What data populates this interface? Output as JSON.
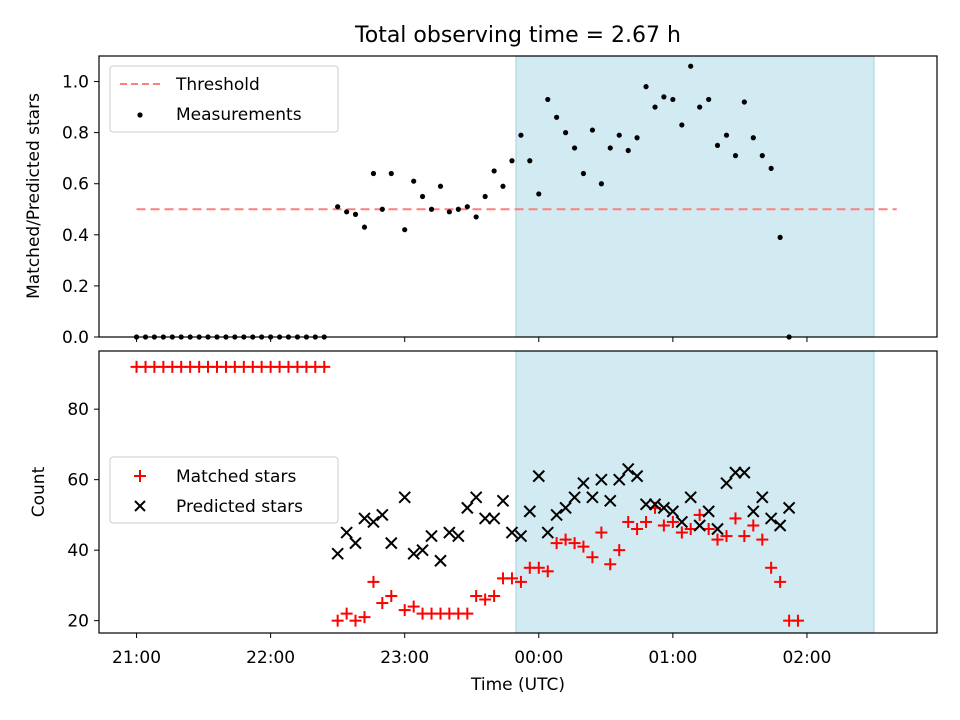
{
  "chart_data": [
    {
      "type": "scatter",
      "title": "Total observing time = 2.67 h",
      "ylabel": "Matched/Predicted stars",
      "ylim": [
        0,
        1.1
      ],
      "xlim": [
        -0.28,
        5.97
      ],
      "yticks": [
        0.0,
        0.2,
        0.4,
        0.6,
        0.8,
        1.0
      ],
      "ytick_labels": [
        "0.0",
        "0.2",
        "0.4",
        "0.6",
        "0.8",
        "1.0"
      ],
      "legend_position": "top-left",
      "shaded_region": {
        "x": [
          2.83,
          5.5
        ],
        "color": "#add8e6"
      },
      "threshold": {
        "name": "Threshold",
        "y": 0.5,
        "x": [
          0,
          5.67
        ],
        "color": "#ff7f7f",
        "style": "dashed"
      },
      "series": [
        {
          "name": "Measurements",
          "marker": "dot",
          "color": "#000000",
          "points": [
            [
              0.0,
              0
            ],
            [
              0.067,
              0
            ],
            [
              0.133,
              0
            ],
            [
              0.2,
              0
            ],
            [
              0.267,
              0
            ],
            [
              0.333,
              0
            ],
            [
              0.4,
              0
            ],
            [
              0.467,
              0
            ],
            [
              0.533,
              0
            ],
            [
              0.6,
              0
            ],
            [
              0.667,
              0
            ],
            [
              0.733,
              0
            ],
            [
              0.8,
              0
            ],
            [
              0.867,
              0
            ],
            [
              0.933,
              0
            ],
            [
              1.0,
              0
            ],
            [
              1.067,
              0
            ],
            [
              1.133,
              0
            ],
            [
              1.2,
              0
            ],
            [
              1.267,
              0
            ],
            [
              1.333,
              0
            ],
            [
              1.4,
              0
            ],
            [
              1.5,
              0.51
            ],
            [
              1.567,
              0.49
            ],
            [
              1.633,
              0.48
            ],
            [
              1.7,
              0.43
            ],
            [
              1.767,
              0.64
            ],
            [
              1.833,
              0.5
            ],
            [
              1.9,
              0.64
            ],
            [
              2.0,
              0.42
            ],
            [
              2.067,
              0.61
            ],
            [
              2.133,
              0.55
            ],
            [
              2.2,
              0.5
            ],
            [
              2.267,
              0.59
            ],
            [
              2.333,
              0.49
            ],
            [
              2.4,
              0.5
            ],
            [
              2.467,
              0.51
            ],
            [
              2.533,
              0.47
            ],
            [
              2.6,
              0.55
            ],
            [
              2.667,
              0.65
            ],
            [
              2.733,
              0.59
            ],
            [
              2.8,
              0.69
            ],
            [
              2.867,
              0.79
            ],
            [
              2.933,
              0.69
            ],
            [
              3.0,
              0.56
            ],
            [
              3.067,
              0.93
            ],
            [
              3.133,
              0.86
            ],
            [
              3.2,
              0.8
            ],
            [
              3.267,
              0.74
            ],
            [
              3.333,
              0.64
            ],
            [
              3.4,
              0.81
            ],
            [
              3.467,
              0.6
            ],
            [
              3.533,
              0.74
            ],
            [
              3.6,
              0.79
            ],
            [
              3.667,
              0.73
            ],
            [
              3.733,
              0.78
            ],
            [
              3.8,
              0.98
            ],
            [
              3.867,
              0.9
            ],
            [
              3.933,
              0.94
            ],
            [
              4.0,
              0.93
            ],
            [
              4.067,
              0.83
            ],
            [
              4.133,
              1.06
            ],
            [
              4.2,
              0.9
            ],
            [
              4.267,
              0.93
            ],
            [
              4.333,
              0.75
            ],
            [
              4.4,
              0.79
            ],
            [
              4.467,
              0.71
            ],
            [
              4.533,
              0.92
            ],
            [
              4.6,
              0.78
            ],
            [
              4.667,
              0.71
            ],
            [
              4.733,
              0.66
            ],
            [
              4.8,
              0.39
            ],
            [
              4.867,
              0
            ]
          ]
        }
      ]
    },
    {
      "type": "scatter",
      "xlabel": "Time (UTC)",
      "ylabel": "Count",
      "ylim": [
        16.5,
        96.5
      ],
      "xlim": [
        -0.28,
        5.97
      ],
      "xticks": [
        0,
        1,
        2,
        3,
        4,
        5
      ],
      "xtick_labels": [
        "21:00",
        "22:00",
        "23:00",
        "00:00",
        "01:00",
        "02:00"
      ],
      "yticks": [
        20,
        40,
        60,
        80
      ],
      "ytick_labels": [
        "20",
        "40",
        "60",
        "80"
      ],
      "legend_position": "center-left",
      "shaded_region": {
        "x": [
          2.83,
          5.5
        ],
        "color": "#add8e6"
      },
      "series": [
        {
          "name": "Matched stars",
          "marker": "plus",
          "color": "#ff0000",
          "points": [
            [
              0.0,
              92
            ],
            [
              0.067,
              92
            ],
            [
              0.133,
              92
            ],
            [
              0.2,
              92
            ],
            [
              0.267,
              92
            ],
            [
              0.333,
              92
            ],
            [
              0.4,
              92
            ],
            [
              0.467,
              92
            ],
            [
              0.533,
              92
            ],
            [
              0.6,
              92
            ],
            [
              0.667,
              92
            ],
            [
              0.733,
              92
            ],
            [
              0.8,
              92
            ],
            [
              0.867,
              92
            ],
            [
              0.933,
              92
            ],
            [
              1.0,
              92
            ],
            [
              1.067,
              92
            ],
            [
              1.133,
              92
            ],
            [
              1.2,
              92
            ],
            [
              1.267,
              92
            ],
            [
              1.333,
              92
            ],
            [
              1.4,
              92
            ],
            [
              1.5,
              20
            ],
            [
              1.567,
              22
            ],
            [
              1.633,
              20
            ],
            [
              1.7,
              21
            ],
            [
              1.767,
              31
            ],
            [
              1.833,
              25
            ],
            [
              1.9,
              27
            ],
            [
              2.0,
              23
            ],
            [
              2.067,
              24
            ],
            [
              2.133,
              22
            ],
            [
              2.2,
              22
            ],
            [
              2.267,
              22
            ],
            [
              2.333,
              22
            ],
            [
              2.4,
              22
            ],
            [
              2.467,
              22
            ],
            [
              2.533,
              27
            ],
            [
              2.6,
              26
            ],
            [
              2.667,
              27
            ],
            [
              2.733,
              32
            ],
            [
              2.8,
              32
            ],
            [
              2.867,
              31
            ],
            [
              2.933,
              35
            ],
            [
              3.0,
              35
            ],
            [
              3.067,
              34
            ],
            [
              3.133,
              42
            ],
            [
              3.2,
              43
            ],
            [
              3.267,
              42
            ],
            [
              3.333,
              41
            ],
            [
              3.4,
              38
            ],
            [
              3.467,
              45
            ],
            [
              3.533,
              36
            ],
            [
              3.6,
              40
            ],
            [
              3.667,
              48
            ],
            [
              3.733,
              46
            ],
            [
              3.8,
              48
            ],
            [
              3.867,
              52
            ],
            [
              3.933,
              47
            ],
            [
              4.0,
              48
            ],
            [
              4.067,
              45
            ],
            [
              4.133,
              46
            ],
            [
              4.2,
              50
            ],
            [
              4.267,
              46
            ],
            [
              4.333,
              43
            ],
            [
              4.4,
              44
            ],
            [
              4.467,
              49
            ],
            [
              4.533,
              44
            ],
            [
              4.6,
              47
            ],
            [
              4.667,
              43
            ],
            [
              4.733,
              35
            ],
            [
              4.8,
              31
            ],
            [
              4.867,
              20
            ],
            [
              4.933,
              20
            ]
          ]
        },
        {
          "name": "Predicted stars",
          "marker": "x",
          "color": "#000000",
          "points": [
            [
              1.5,
              39
            ],
            [
              1.567,
              45
            ],
            [
              1.633,
              42
            ],
            [
              1.7,
              49
            ],
            [
              1.767,
              48
            ],
            [
              1.833,
              50
            ],
            [
              1.9,
              42
            ],
            [
              2.0,
              55
            ],
            [
              2.067,
              39
            ],
            [
              2.133,
              40
            ],
            [
              2.2,
              44
            ],
            [
              2.267,
              37
            ],
            [
              2.333,
              45
            ],
            [
              2.4,
              44
            ],
            [
              2.467,
              52
            ],
            [
              2.533,
              55
            ],
            [
              2.6,
              49
            ],
            [
              2.667,
              49
            ],
            [
              2.733,
              54
            ],
            [
              2.8,
              45
            ],
            [
              2.867,
              44
            ],
            [
              2.933,
              51
            ],
            [
              3.0,
              61
            ],
            [
              3.067,
              45
            ],
            [
              3.133,
              50
            ],
            [
              3.2,
              52
            ],
            [
              3.267,
              55
            ],
            [
              3.333,
              59
            ],
            [
              3.4,
              55
            ],
            [
              3.467,
              60
            ],
            [
              3.533,
              54
            ],
            [
              3.6,
              60
            ],
            [
              3.667,
              63
            ],
            [
              3.733,
              61
            ],
            [
              3.8,
              53
            ],
            [
              3.867,
              53
            ],
            [
              3.933,
              52
            ],
            [
              4.0,
              51
            ],
            [
              4.067,
              48
            ],
            [
              4.133,
              55
            ],
            [
              4.2,
              47
            ],
            [
              4.267,
              51
            ],
            [
              4.333,
              46
            ],
            [
              4.4,
              59
            ],
            [
              4.467,
              62
            ],
            [
              4.533,
              62
            ],
            [
              4.6,
              51
            ],
            [
              4.667,
              55
            ],
            [
              4.733,
              49
            ],
            [
              4.8,
              47
            ],
            [
              4.867,
              52
            ]
          ]
        }
      ]
    }
  ]
}
